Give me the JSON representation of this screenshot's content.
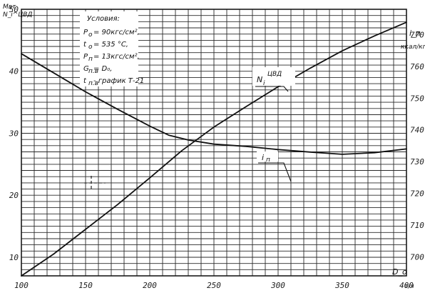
{
  "chart_data": {
    "type": "line",
    "x_axis": {
      "label": "D_o",
      "unit": "т/ч",
      "range": [
        100,
        400
      ],
      "ticks": [
        100,
        150,
        200,
        250,
        300,
        350,
        400
      ],
      "tick_labels": [
        "100",
        "150",
        "200",
        "250",
        "300",
        "350",
        "400"
      ]
    },
    "y_left": {
      "label": "Мвт",
      "sublabel": "N_i^ЦВД",
      "range": [
        7,
        50
      ],
      "ticks": [
        10,
        20,
        30,
        40,
        50
      ],
      "tick_labels": [
        "10",
        "20",
        "30",
        "40",
        "50"
      ]
    },
    "y_right": {
      "label": "i_п",
      "sublabel": "ккал/кг",
      "range": [
        694,
        778
      ],
      "ticks": [
        700,
        710,
        720,
        730,
        740,
        750,
        760,
        770
      ],
      "tick_labels": [
        "700",
        "710",
        "720",
        "730",
        "740",
        "750",
        "760",
        "770"
      ]
    },
    "grid": true,
    "series": [
      {
        "name": "N_i^ЦВД",
        "axis": "left",
        "label_main": "N",
        "label_sub": "i",
        "label_sup": "ЦВД",
        "points": [
          [
            100,
            7.0
          ],
          [
            125,
            10.5
          ],
          [
            150,
            14.5
          ],
          [
            175,
            18.5
          ],
          [
            200,
            22.8
          ],
          [
            225,
            27.2
          ],
          [
            250,
            31.0
          ],
          [
            275,
            34.3
          ],
          [
            300,
            37.5
          ],
          [
            325,
            40.5
          ],
          [
            350,
            43.3
          ],
          [
            375,
            45.7
          ],
          [
            400,
            47.9
          ]
        ]
      },
      {
        "name": "i_п",
        "axis": "right",
        "label_main": "i",
        "label_sub": "п",
        "points": [
          [
            100,
            764.0
          ],
          [
            125,
            758.0
          ],
          [
            150,
            752.0
          ],
          [
            175,
            746.5
          ],
          [
            200,
            741.2
          ],
          [
            215,
            738.3
          ],
          [
            230,
            736.8
          ],
          [
            250,
            735.5
          ],
          [
            275,
            734.8
          ],
          [
            300,
            733.8
          ],
          [
            325,
            733.0
          ],
          [
            350,
            732.3
          ],
          [
            375,
            732.8
          ],
          [
            400,
            734.0
          ]
        ]
      }
    ],
    "conditions": {
      "title": "Условия:",
      "lines": [
        {
          "main": "P",
          "sub": "о",
          "text": " = 90кгс/см²,"
        },
        {
          "main": "t",
          "sub": "о",
          "text": " = 535 °С,"
        },
        {
          "main": "P",
          "sub": "п",
          "text": " = 13кгс/см²,"
        },
        {
          "main": "G",
          "sub": "п.в",
          "text": " = D₀,"
        },
        {
          "main": "t",
          "sub": "п.в",
          "text": " - график Т-21"
        }
      ]
    }
  }
}
